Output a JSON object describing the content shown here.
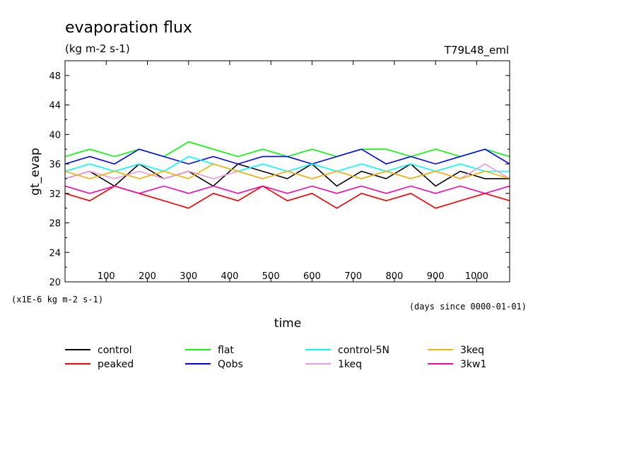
{
  "chart_data": {
    "type": "line",
    "title": "evaporation flux",
    "subtitle": "(kg m-2 s-1)",
    "experiment": "T79L48_eml",
    "xlabel": "time",
    "xunits": "(days since 0000-01-01)",
    "ylabel": "gt_evap",
    "yscale_note": "(x1E-6 kg m-2 s-1)",
    "xlim": [
      0,
      1080
    ],
    "ylim": [
      20,
      50
    ],
    "xticks": [
      100,
      200,
      300,
      400,
      500,
      600,
      700,
      800,
      900,
      1000
    ],
    "yticks": [
      20,
      24,
      28,
      32,
      36,
      40,
      44,
      48
    ],
    "grid": false,
    "legend_position": "bottom",
    "series": [
      {
        "name": "control",
        "color": "#000000",
        "x": [
          0,
          60,
          120,
          180,
          240,
          300,
          360,
          420,
          480,
          540,
          600,
          660,
          720,
          780,
          840,
          900,
          960,
          1020,
          1080
        ],
        "y": [
          34,
          35,
          33,
          36,
          34,
          35,
          33,
          36,
          35,
          34,
          36,
          33,
          35,
          34,
          36,
          33,
          35,
          34,
          34
        ]
      },
      {
        "name": "peaked",
        "color": "#ff0000",
        "x": [
          0,
          60,
          120,
          180,
          240,
          300,
          360,
          420,
          480,
          540,
          600,
          660,
          720,
          780,
          840,
          900,
          960,
          1020,
          1080
        ],
        "y": [
          32,
          31,
          33,
          32,
          31,
          30,
          32,
          31,
          33,
          31,
          32,
          30,
          32,
          31,
          32,
          30,
          31,
          32,
          31
        ]
      },
      {
        "name": "flat",
        "color": "#00ff00",
        "x": [
          0,
          60,
          120,
          180,
          240,
          300,
          360,
          420,
          480,
          540,
          600,
          660,
          720,
          780,
          840,
          900,
          960,
          1020,
          1080
        ],
        "y": [
          37,
          38,
          37,
          38,
          37,
          39,
          38,
          37,
          38,
          37,
          38,
          37,
          38,
          38,
          37,
          38,
          37,
          38,
          37
        ]
      },
      {
        "name": "Qobs",
        "color": "#0000ff",
        "x": [
          0,
          60,
          120,
          180,
          240,
          300,
          360,
          420,
          480,
          540,
          600,
          660,
          720,
          780,
          840,
          900,
          960,
          1020,
          1080
        ],
        "y": [
          36,
          37,
          36,
          38,
          37,
          36,
          37,
          36,
          37,
          37,
          36,
          37,
          38,
          36,
          37,
          36,
          37,
          38,
          36
        ]
      },
      {
        "name": "control-5N",
        "color": "#00ffff",
        "x": [
          0,
          60,
          120,
          180,
          240,
          300,
          360,
          420,
          480,
          540,
          600,
          660,
          720,
          780,
          840,
          900,
          960,
          1020,
          1080
        ],
        "y": [
          35,
          36,
          35,
          36,
          35,
          37,
          36,
          35,
          36,
          35,
          36,
          35,
          36,
          35,
          36,
          35,
          36,
          35,
          35
        ]
      },
      {
        "name": "1keq",
        "color": "#ee99dd",
        "x": [
          0,
          60,
          120,
          180,
          240,
          300,
          360,
          420,
          480,
          540,
          600,
          660,
          720,
          780,
          840,
          900,
          960,
          1020,
          1080
        ],
        "y": [
          34,
          35,
          34,
          35,
          34,
          35,
          34,
          35,
          34,
          35,
          34,
          35,
          34,
          35,
          34,
          35,
          34,
          36,
          34
        ]
      },
      {
        "name": "3keq",
        "color": "#f0b400",
        "x": [
          0,
          60,
          120,
          180,
          240,
          300,
          360,
          420,
          480,
          540,
          600,
          660,
          720,
          780,
          840,
          900,
          960,
          1020,
          1080
        ],
        "y": [
          35,
          34,
          35,
          34,
          35,
          34,
          36,
          35,
          34,
          35,
          34,
          35,
          34,
          35,
          34,
          35,
          34,
          35,
          34
        ]
      },
      {
        "name": "3kw1",
        "color": "#ff00aa",
        "x": [
          0,
          60,
          120,
          180,
          240,
          300,
          360,
          420,
          480,
          540,
          600,
          660,
          720,
          780,
          840,
          900,
          960,
          1020,
          1080
        ],
        "y": [
          33,
          32,
          33,
          32,
          33,
          32,
          33,
          32,
          33,
          32,
          33,
          32,
          33,
          32,
          33,
          32,
          33,
          32,
          33
        ]
      }
    ]
  }
}
